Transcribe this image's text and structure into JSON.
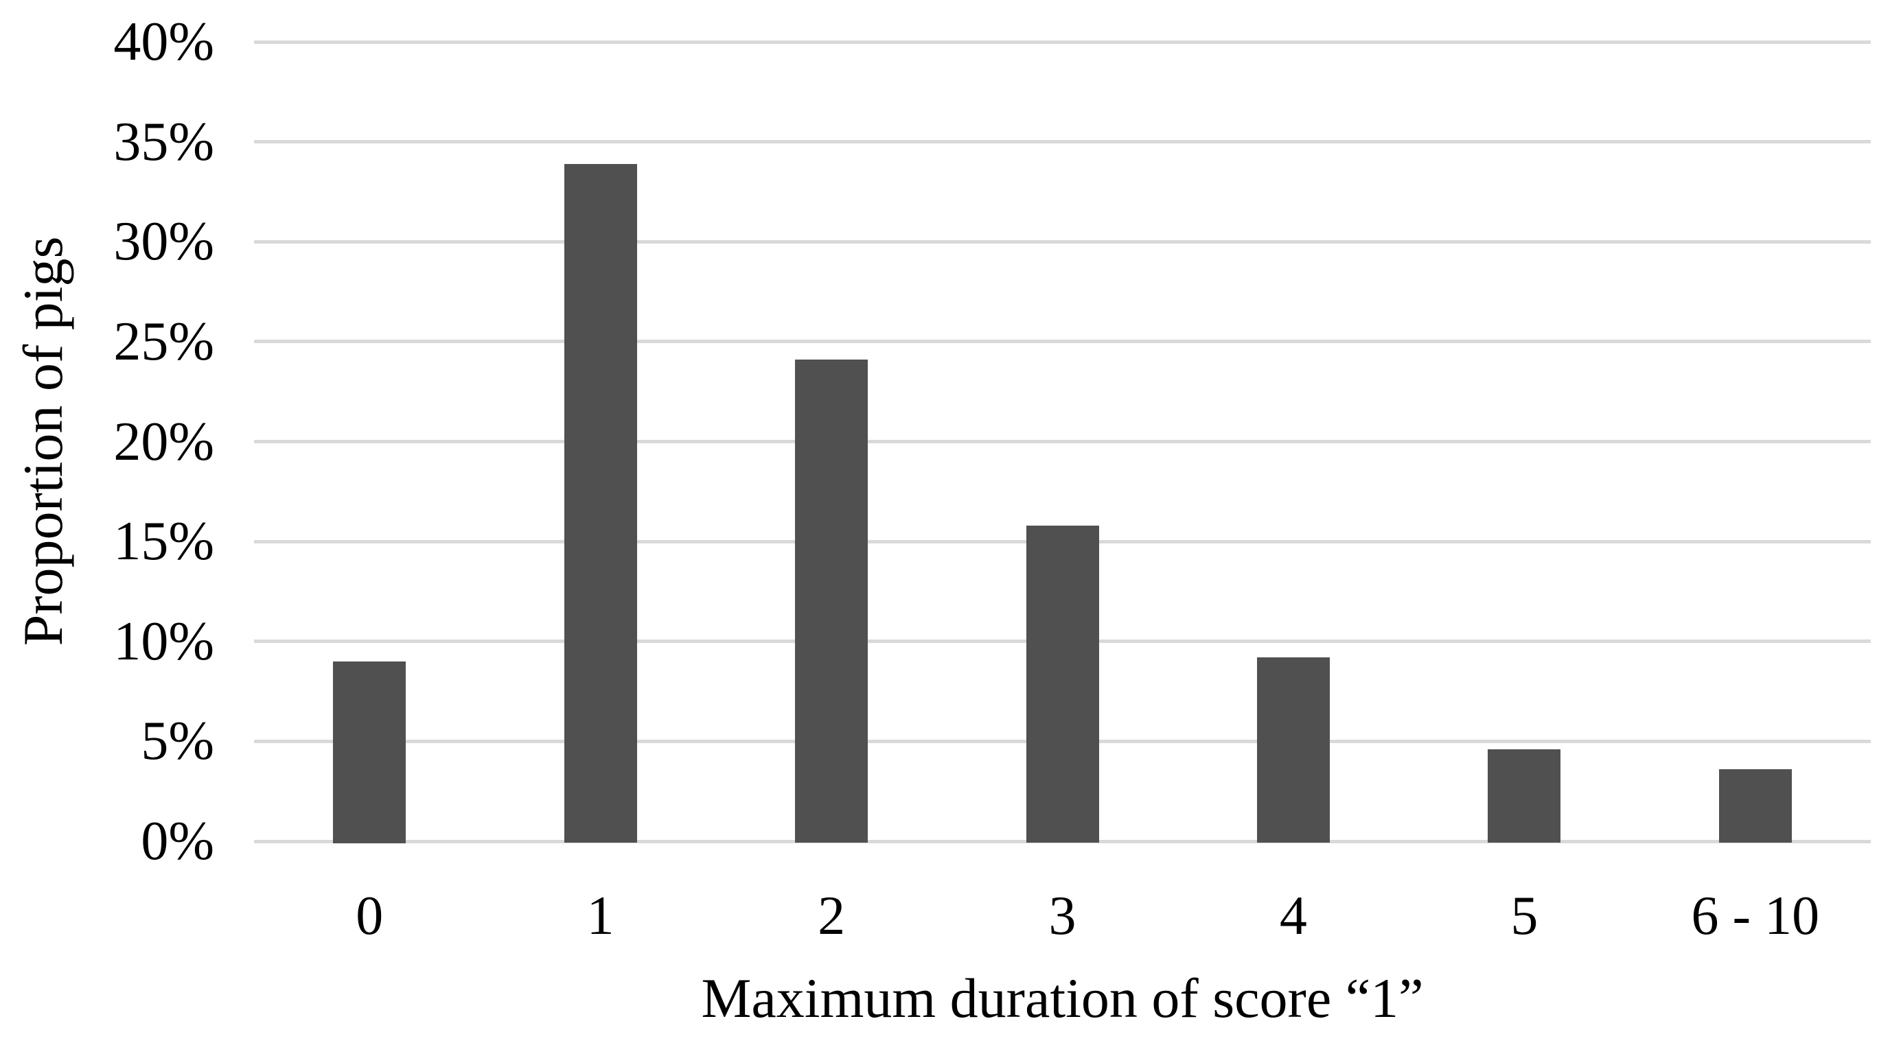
{
  "chart_data": {
    "type": "bar",
    "title": "",
    "categories": [
      "0",
      "1",
      "2",
      "3",
      "4",
      "5",
      "6 - 10"
    ],
    "values": [
      9.0,
      33.9,
      24.1,
      15.8,
      9.2,
      4.6,
      3.6
    ],
    "xlabel": "Maximum duration of score “1”",
    "ylabel": "Proportion of pigs",
    "y_ticks": [
      "0%",
      "5%",
      "10%",
      "15%",
      "20%",
      "25%",
      "30%",
      "35%",
      "40%"
    ],
    "ylim": [
      0,
      40
    ],
    "y_tick_step": 5,
    "grid": "horizontal",
    "legend": "none",
    "bar_color": "#505050",
    "gridline_color": "#d9d9d9",
    "text_color": "#000000",
    "background_color": "#ffffff"
  }
}
